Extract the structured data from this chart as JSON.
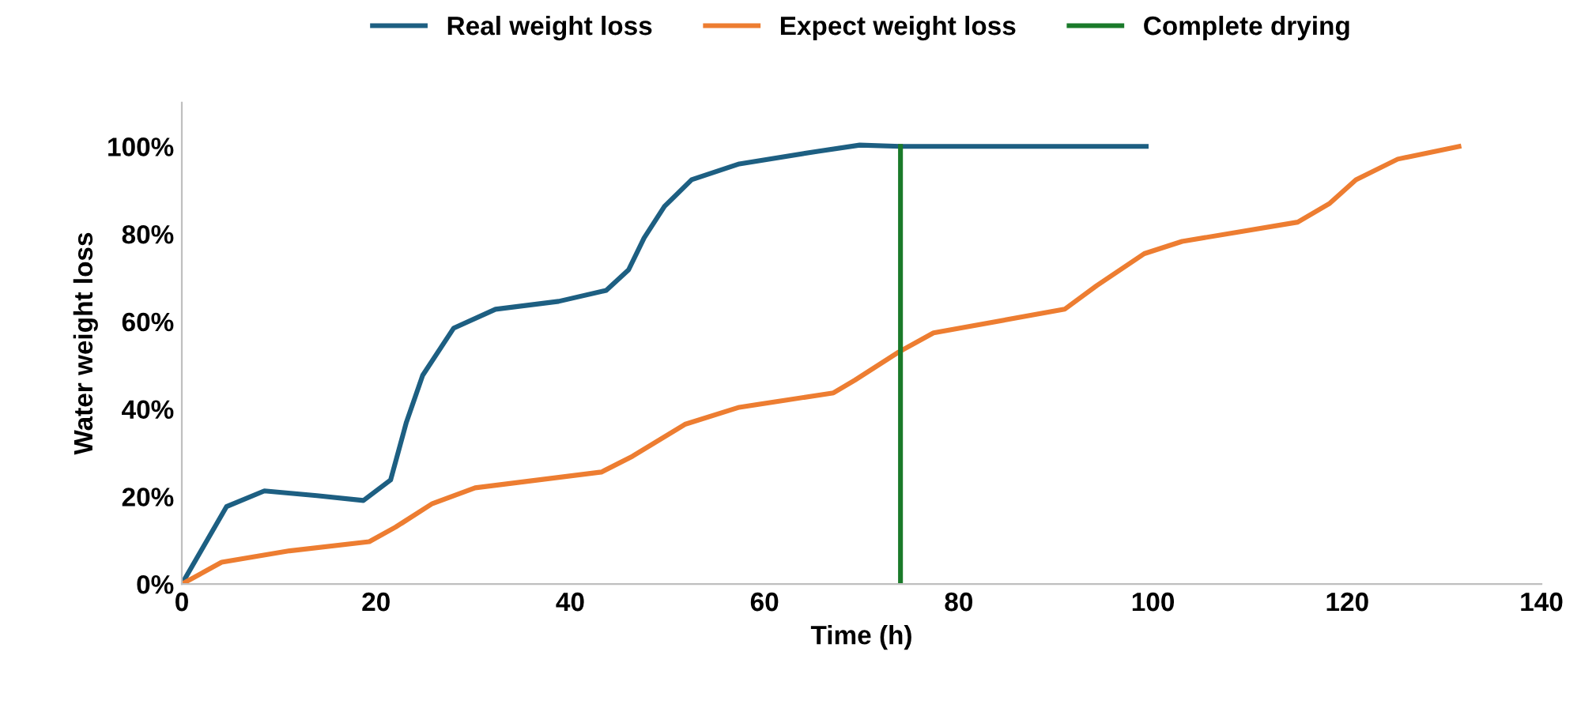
{
  "chart_data": {
    "type": "line",
    "xlabel": "Time (h)",
    "ylabel": "Water weight loss",
    "xlim": [
      0,
      140
    ],
    "xticks": [
      0,
      20,
      40,
      60,
      80,
      100,
      120,
      140
    ],
    "ylim": [
      0,
      110
    ],
    "yticks": [
      {
        "value": 0,
        "label": "0%"
      },
      {
        "value": 20,
        "label": "20%"
      },
      {
        "value": 40,
        "label": "40%"
      },
      {
        "value": 60,
        "label": "60%"
      },
      {
        "value": 80,
        "label": "80%"
      },
      {
        "value": 100,
        "label": "100%"
      }
    ],
    "grid": false,
    "legend": "top",
    "marker": "none",
    "line_style": "solid",
    "series": [
      {
        "name": "Real weight loss",
        "color": "#1d5f82",
        "x": [
          0,
          4.6,
          8.5,
          13.9,
          18.7,
          21.5,
          23.1,
          24.8,
          28,
          32.3,
          38.8,
          43.7,
          46,
          47.6,
          49.7,
          52.5,
          57.4,
          65.5,
          69.8,
          74,
          99.3
        ],
        "values": [
          0,
          17.7,
          21.3,
          20.2,
          19.1,
          23.8,
          36.8,
          47.7,
          58.5,
          62.8,
          64.6,
          67.1,
          71.8,
          79.1,
          86.3,
          92.4,
          96,
          98.9,
          100.3,
          100,
          100
        ]
      },
      {
        "name": "Expect weight loss",
        "color": "#ed7d31",
        "x": [
          0,
          4.1,
          11.1,
          19.3,
          22,
          25.8,
          30.2,
          43.2,
          46.4,
          51.8,
          57.4,
          67.1,
          69.3,
          73.8,
          77.4,
          90.9,
          94.2,
          99.1,
          103,
          114.9,
          118.2,
          120.9,
          125.2,
          131.5
        ],
        "values": [
          0,
          5,
          7.6,
          9.7,
          13,
          18.4,
          22,
          25.6,
          29.2,
          36.5,
          40.4,
          43.7,
          46.6,
          53,
          57.4,
          62.8,
          68.2,
          75.5,
          78.3,
          82.7,
          87,
          92.4,
          97.1,
          100
        ]
      },
      {
        "name": "Complete drying",
        "color": "#1a7a2a",
        "x": [
          74,
          74
        ],
        "values": [
          0,
          100
        ]
      }
    ]
  }
}
